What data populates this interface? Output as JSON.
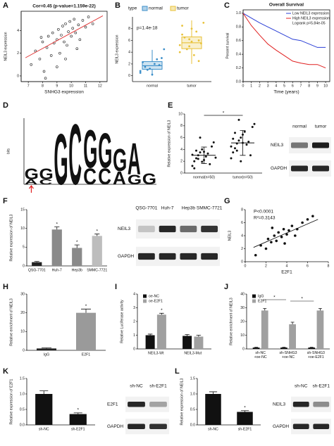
{
  "panel_labels": [
    "A",
    "B",
    "C",
    "D",
    "E",
    "F",
    "G",
    "H",
    "I",
    "J",
    "K",
    "L"
  ],
  "chart_data": [
    {
      "type": "scatter",
      "title": "Cor=0.45 (p-value=1.159e-22)",
      "x_label": "SNHG3 expression",
      "y_label": "NEIL3 expression",
      "frame": true,
      "xlim": [
        6.5,
        12.5
      ],
      "xticks": [
        7,
        8,
        9,
        10,
        11,
        12
      ],
      "ylim": [
        -0.5,
        5.7
      ],
      "yticks": [
        0,
        2,
        4
      ],
      "color": "#222222",
      "marker_fill": "none",
      "fit_color": "#e03030",
      "x": [
        7.2,
        7.5,
        7.8,
        8.0,
        8.1,
        8.3,
        8.4,
        8.6,
        8.7,
        8.8,
        9.0,
        9.1,
        9.2,
        9.3,
        9.4,
        9.5,
        9.6,
        9.7,
        9.8,
        9.9,
        10.0,
        10.1,
        10.2,
        10.3,
        10.5,
        10.6,
        10.8,
        11.0,
        11.2,
        11.5,
        8.2,
        9.0,
        9.6,
        10.4,
        7.9
      ],
      "y": [
        1.0,
        2.2,
        1.5,
        3.0,
        0.4,
        2.5,
        3.5,
        1.8,
        3.8,
        2.9,
        3.2,
        4.1,
        2.0,
        3.6,
        4.4,
        3.0,
        4.6,
        2.7,
        3.9,
        4.8,
        3.5,
        4.2,
        5.0,
        3.8,
        4.5,
        3.2,
        4.9,
        4.3,
        5.2,
        4.6,
        -0.2,
        0.8,
        1.5,
        2.4,
        3.4
      ],
      "fit_x": [
        6.8,
        12.2
      ],
      "fit_y": [
        1.6,
        5.3
      ]
    },
    {
      "type": "box",
      "legend_title": "type",
      "annotation": "p=1.4e-18",
      "y_label": "NEIL3 expression",
      "categories": [
        "normal",
        "tumor"
      ],
      "colors": [
        "#3d8fc9",
        "#e8c23a"
      ],
      "ylim": [
        -1,
        10
      ],
      "yticks": [
        0,
        2,
        4,
        6,
        8
      ],
      "boxes": [
        {
          "min": 0,
          "q1": 1.1,
          "median": 1.7,
          "q3": 2.4,
          "max": 4.4
        },
        {
          "min": 2,
          "q1": 4.6,
          "median": 5.6,
          "q3": 6.6,
          "max": 9.4
        }
      ],
      "points": [
        [
          0.5,
          1.2,
          1.8,
          2.3,
          0.2,
          3.0,
          1.5,
          2.0,
          4.5,
          1.0,
          2.8,
          0.8
        ],
        [
          4,
          5,
          6,
          7,
          8,
          5.5,
          6.5,
          3.5,
          9,
          4.5,
          7.5,
          5.2,
          6.2,
          2.5,
          8.5,
          5.8
        ]
      ]
    },
    {
      "type": "line",
      "title": "Overall Survival",
      "x_label": "Time (years)",
      "y_label": "Percent survival",
      "annotation": "Logrank p=5.84e-05",
      "frame": true,
      "xlim": [
        0,
        10.5
      ],
      "xticks": [
        0,
        1,
        2,
        3,
        4,
        5,
        6,
        7,
        8,
        9,
        10
      ],
      "ylim": [
        0,
        1.05
      ],
      "yticks": [
        {
          "value": 0,
          "label": "0.0"
        },
        {
          "value": 0.2,
          "label": "0.2"
        },
        {
          "value": 0.4,
          "label": "0.4"
        },
        {
          "value": 0.6,
          "label": "0.6"
        },
        {
          "value": 0.8,
          "label": "0.8"
        },
        {
          "value": 1,
          "label": "1.0"
        }
      ],
      "x": [
        0,
        1,
        2,
        3,
        4,
        5,
        6,
        7,
        8,
        9,
        10
      ],
      "series": [
        {
          "name": "Low NEIL3 expression",
          "color": "#2b3fd6",
          "values": [
            1,
            0.93,
            0.86,
            0.8,
            0.74,
            0.68,
            0.62,
            0.6,
            0.55,
            0.5,
            0.5
          ]
        },
        {
          "name": "High NEIL3 expression",
          "color": "#e02020",
          "values": [
            1,
            0.82,
            0.68,
            0.55,
            0.46,
            0.38,
            0.3,
            0.27,
            0.25,
            0.25,
            0.2
          ]
        }
      ]
    },
    {
      "type": "logo",
      "y_label": "bits",
      "ylim": [
        0,
        2
      ],
      "columns": [
        {
          "letters": [
            "A",
            "G"
          ],
          "heights": [
            0.15,
            0.35
          ]
        },
        {
          "letters": [
            "C",
            "G"
          ],
          "heights": [
            0.15,
            0.35
          ]
        },
        {
          "letters": [
            "G"
          ],
          "heights": [
            1.6
          ]
        },
        {
          "letters": [
            "C"
          ],
          "heights": [
            1.9
          ]
        },
        {
          "letters": [
            "C",
            "G"
          ],
          "heights": [
            0.5,
            1.2
          ]
        },
        {
          "letters": [
            "C",
            "G"
          ],
          "heights": [
            0.5,
            1.1
          ]
        },
        {
          "letters": [
            "A",
            "G"
          ],
          "heights": [
            0.4,
            0.7
          ]
        },
        {
          "letters": [
            "G",
            "A"
          ],
          "heights": [
            0.3,
            1.0
          ]
        },
        {
          "letters": [
            "G"
          ],
          "heights": [
            0.35
          ]
        }
      ],
      "letter_colors": {
        "A": "#2aa02a",
        "C": "#2b50c8",
        "G": "#f5a300",
        "T": "#d62020"
      }
    },
    {
      "type": "strip",
      "y_label": "Relative expression of NEIL3",
      "categories": [
        "normal(n=50)",
        "tumor(n=50)"
      ],
      "ylim": [
        0,
        10
      ],
      "yticks": [
        0,
        2,
        4,
        6,
        8,
        10
      ],
      "color": "#111111",
      "points": [
        [
          1.2,
          2.0,
          2.5,
          3.0,
          3.5,
          4.0,
          2.2,
          2.8,
          3.3,
          1.5,
          4.5,
          5.2,
          2.6,
          3.1,
          0.8,
          3.8,
          2.4,
          6.0,
          1.9,
          3.6
        ],
        [
          2.5,
          3.5,
          4.2,
          5.0,
          5.5,
          6.0,
          6.5,
          7.0,
          4.8,
          5.3,
          3.0,
          7.8,
          8.3,
          4.5,
          5.8,
          6.8,
          3.8,
          9.0,
          2.0,
          5.1
        ]
      ],
      "means": [
        3.0,
        5.1
      ],
      "errors": [
        1.4,
        2.1
      ],
      "comparisons": [
        "*"
      ]
    },
    {
      "type": "bar",
      "y_label": "Relative  expression of NEIL3",
      "categories": [
        "QSG-7701",
        "Huh-7",
        "Hep3b",
        "SMMC-7721"
      ],
      "values": [
        1,
        9.7,
        4.8,
        8.0
      ],
      "errors": [
        0.2,
        0.7,
        0.8,
        0.5
      ],
      "colors": [
        "#222222",
        "#8a8a8a",
        "#8a8a8a",
        "#bdbdbd"
      ],
      "stars": [
        null,
        "*",
        "*",
        "*"
      ],
      "ylim": [
        0,
        15
      ],
      "yticks": [
        0,
        5,
        10,
        15
      ]
    },
    {
      "type": "scatter",
      "annotations": [
        "P<0.0001",
        "R²=0.3143"
      ],
      "x_label": "E2F1",
      "y_label": "NEIL3",
      "xlim": [
        0,
        8
      ],
      "xticks": [
        0,
        2,
        4,
        6,
        8
      ],
      "ylim": [
        0,
        8
      ],
      "yticks": [
        0,
        2,
        4,
        6,
        8
      ],
      "color": "#111111",
      "marker_fill": "#111111",
      "fit_color": "#111111",
      "x": [
        1,
        1.5,
        2,
        2.2,
        2.5,
        2.8,
        3,
        3.2,
        3.5,
        3.7,
        4,
        4.2,
        4.5,
        5,
        5.5,
        6,
        6.5,
        3.8,
        2.6,
        4.8
      ],
      "y": [
        1,
        2.5,
        2,
        3.5,
        3,
        4,
        3.2,
        4.5,
        3.8,
        5,
        4.2,
        4.8,
        5.5,
        5,
        6,
        6.5,
        7,
        2.8,
        5.2,
        4
      ],
      "fit_x": [
        0.8,
        7
      ],
      "fit_y": [
        2.2,
        6.5
      ]
    },
    {
      "type": "bar",
      "y_label": "Relative enrichment of NEIL3",
      "categories": [
        "IgG",
        "E2F1"
      ],
      "values": [
        1,
        20
      ],
      "errors": [
        0.3,
        2
      ],
      "colors": [
        "#222222",
        "#9a9a9a"
      ],
      "stars": [
        null,
        "*"
      ],
      "ylim": [
        0,
        30
      ],
      "yticks": [
        0,
        10,
        20,
        30
      ]
    },
    {
      "type": "bar",
      "y_label": "Relative Luciferase activity",
      "categories": [
        "NEIL3-Wt",
        "NEIL3-Mut"
      ],
      "series": [
        {
          "name": "oe-NC",
          "color": "#111111",
          "values": [
            1,
            0.95
          ],
          "errors": [
            0.08,
            0.1
          ]
        },
        {
          "name": "oe-E2F1",
          "color": "#a0a0a0",
          "values": [
            2.5,
            0.9
          ],
          "errors": [
            0.1,
            0.1
          ],
          "stars": [
            "*",
            null
          ]
        }
      ],
      "ylim": [
        0,
        4
      ],
      "yticks": [
        0,
        1,
        2,
        3,
        4
      ]
    },
    {
      "type": "bar",
      "y_label": "Relative enrichment of NEIL3",
      "categories": [
        "sh-NC +oe-NC",
        "sh-SNHG3 +oe-NC",
        "sh-SNHG3 +oe-E2F1"
      ],
      "series": [
        {
          "name": "IgG",
          "color": "#111111",
          "values": [
            1,
            1,
            1
          ],
          "errors": [
            0.2,
            0.2,
            0.2
          ]
        },
        {
          "name": "E2F1",
          "color": "#a0a0a0",
          "values": [
            28,
            18,
            28
          ],
          "errors": [
            1.5,
            1.5,
            1.5
          ]
        }
      ],
      "comparisons": [
        "*",
        "*"
      ],
      "ylim": [
        0,
        40
      ],
      "yticks": [
        0,
        10,
        20,
        30,
        40
      ]
    },
    {
      "type": "bar",
      "y_label": "Relative expression of E2F1",
      "categories": [
        "sh-NC",
        "sh-E2F1"
      ],
      "values": [
        1.0,
        0.35
      ],
      "errors": [
        0.1,
        0.04
      ],
      "colors": [
        "#111111",
        "#111111"
      ],
      "stars": [
        null,
        "*"
      ],
      "ylim": [
        0,
        1.5
      ],
      "yticks": [
        {
          "value": 0,
          "label": "0.0"
        },
        {
          "value": 0.5,
          "label": "0.5"
        },
        {
          "value": 1,
          "label": "1.0"
        },
        {
          "value": 1.5,
          "label": "1.5"
        }
      ]
    },
    {
      "type": "bar",
      "y_label": "Relative expression of NEIL3",
      "categories": [
        "sh-NC",
        "sh-E2F1"
      ],
      "values": [
        1.0,
        0.42
      ],
      "errors": [
        0.07,
        0.04
      ],
      "colors": [
        "#111111",
        "#111111"
      ],
      "stars": [
        null,
        "*"
      ],
      "ylim": [
        0,
        1.5
      ],
      "yticks": [
        {
          "value": 0,
          "label": "0.0"
        },
        {
          "value": 0.5,
          "label": "0.5"
        },
        {
          "value": 1,
          "label": "1.0"
        },
        {
          "value": 1.5,
          "label": "1.5"
        }
      ]
    }
  ],
  "blots": [
    {
      "columns": [
        "normal",
        "tumor"
      ],
      "rows": [
        "NEIL3",
        "GAPDH"
      ]
    },
    {
      "columns": [
        "QSG-7701",
        "Huh-7",
        "Hep3b",
        "SMMC-7721"
      ],
      "rows": [
        "NEIL3",
        "GAPDH"
      ]
    },
    {
      "columns": [
        "sh-NC",
        "sh-E2F1"
      ],
      "rows": [
        "E2F1",
        "GAPDH"
      ]
    },
    {
      "columns": [
        "sh-NC",
        "sh-E2F1"
      ],
      "rows": [
        "NEIL3",
        "GAPDH"
      ]
    }
  ]
}
